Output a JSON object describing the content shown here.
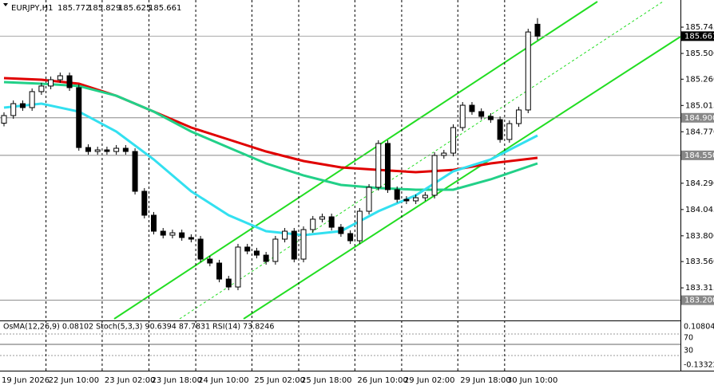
{
  "chart_data": {
    "type": "candlestick",
    "title": "EURJPY,H1",
    "categories": [
      "19 Jun 2026",
      null,
      null,
      null,
      null,
      "22 Jun 10:00",
      null,
      null,
      null,
      null,
      null,
      "23 Jun 02:00",
      null,
      null,
      null,
      null,
      "23 Jun 18:00",
      null,
      null,
      null,
      null,
      "24 Jun 10:00",
      null,
      null,
      null,
      null,
      null,
      "25 Jun 02:00",
      null,
      null,
      null,
      null,
      "25 Jun 18:00",
      null,
      null,
      null,
      null,
      null,
      "26 Jun 10:00",
      null,
      null,
      null,
      null,
      "29 Jun 02:00",
      null,
      null,
      null,
      null,
      null,
      "29 Jun 18:00",
      null,
      null,
      null,
      null,
      "30 Jun 10:00",
      null,
      null,
      null
    ],
    "open": [
      184.85,
      184.921,
      185.032,
      184.995,
      185.144,
      185.196,
      185.255,
      185.292,
      185.181,
      184.623,
      184.586,
      184.601,
      184.586,
      184.616,
      184.586,
      184.215,
      183.992,
      183.843,
      183.806,
      183.828,
      183.784,
      183.769,
      183.583,
      183.546,
      183.397,
      183.323,
      183.695,
      183.658,
      183.62,
      183.561,
      183.769,
      183.843,
      183.583,
      183.858,
      183.955,
      183.977,
      183.88,
      183.821,
      183.754,
      184.029,
      184.252,
      184.661,
      184.23,
      184.14,
      184.126,
      184.155,
      184.178,
      184.549,
      184.571,
      184.809,
      185.017,
      184.958,
      184.913,
      184.883,
      184.698,
      184.846,
      184.973,
      185.772
    ],
    "high": [
      184.951,
      185.062,
      185.062,
      185.174,
      185.226,
      185.285,
      185.322,
      185.322,
      185.211,
      184.653,
      184.631,
      184.631,
      184.646,
      184.646,
      184.616,
      184.245,
      184.022,
      183.873,
      183.858,
      183.858,
      183.814,
      183.799,
      183.613,
      183.576,
      183.427,
      183.725,
      183.725,
      183.688,
      183.65,
      183.799,
      183.873,
      183.873,
      183.888,
      183.985,
      184.007,
      184.007,
      183.91,
      183.851,
      184.059,
      184.282,
      184.691,
      184.691,
      184.26,
      184.17,
      184.185,
      184.208,
      184.579,
      184.601,
      184.839,
      185.047,
      185.047,
      184.988,
      184.943,
      184.913,
      184.876,
      185.003,
      185.73,
      185.829
    ],
    "low": [
      184.82,
      184.891,
      184.965,
      184.965,
      185.114,
      185.166,
      185.225,
      185.151,
      184.593,
      184.556,
      184.556,
      184.556,
      184.556,
      184.556,
      184.185,
      183.962,
      183.813,
      183.776,
      183.776,
      183.754,
      183.739,
      183.553,
      183.516,
      183.367,
      183.293,
      183.293,
      183.628,
      183.59,
      183.531,
      183.531,
      183.739,
      183.553,
      183.553,
      183.828,
      183.925,
      183.85,
      183.791,
      183.724,
      183.724,
      183.999,
      184.222,
      184.2,
      184.11,
      184.096,
      184.096,
      184.125,
      184.148,
      184.519,
      184.541,
      184.779,
      184.928,
      184.883,
      184.853,
      184.668,
      184.668,
      184.816,
      184.943,
      185.625
    ],
    "close": [
      184.921,
      185.032,
      184.995,
      185.144,
      185.196,
      185.255,
      185.292,
      185.181,
      184.623,
      184.586,
      184.601,
      184.586,
      184.616,
      184.586,
      184.215,
      183.992,
      183.843,
      183.806,
      183.828,
      183.784,
      183.769,
      183.583,
      183.546,
      183.397,
      183.323,
      183.695,
      183.658,
      183.62,
      183.561,
      183.769,
      183.843,
      183.583,
      183.858,
      183.955,
      183.977,
      183.88,
      183.821,
      183.754,
      184.029,
      184.252,
      184.661,
      184.23,
      184.14,
      184.126,
      184.155,
      184.178,
      184.549,
      184.571,
      184.809,
      185.017,
      184.958,
      184.913,
      184.883,
      184.698,
      184.846,
      184.973,
      185.7,
      185.661
    ],
    "moving_averages": [
      {
        "color": "#e00000",
        "x": [
          0,
          4,
          8,
          12,
          16,
          20,
          24,
          28,
          32,
          36,
          40,
          44,
          48,
          52,
          57
        ],
        "values": [
          185.27,
          185.255,
          185.218,
          185.106,
          184.958,
          184.809,
          184.698,
          184.586,
          184.497,
          184.438,
          184.415,
          184.393,
          184.415,
          184.475,
          184.527
        ]
      },
      {
        "color": "#22d088",
        "x": [
          0,
          4,
          8,
          12,
          16,
          20,
          24,
          28,
          32,
          36,
          40,
          44,
          48,
          52,
          57
        ],
        "values": [
          185.233,
          185.218,
          185.196,
          185.106,
          184.958,
          184.772,
          184.623,
          184.475,
          184.363,
          184.274,
          184.245,
          184.23,
          184.23,
          184.326,
          184.475
        ]
      },
      {
        "color": "#33e0f0",
        "x": [
          0,
          4,
          8,
          12,
          16,
          20,
          24,
          28,
          32,
          36,
          40,
          44,
          48,
          52,
          57
        ],
        "values": [
          184.995,
          185.032,
          184.958,
          184.772,
          184.512,
          184.215,
          183.992,
          183.843,
          183.806,
          183.843,
          184.029,
          184.178,
          184.401,
          184.512,
          184.735
        ]
      }
    ],
    "ylim": [
      183.026,
      185.998
    ],
    "yticks": [
      185.745,
      {
        "value": 185.5,
        "label": "185.500"
      },
      {
        "value": 185.26,
        "label": "185.260"
      },
      185.015,
      {
        "value": 184.77,
        "label": "184.770"
      },
      {
        "value": 184.29,
        "label": "184.290"
      },
      184.045,
      {
        "value": 183.8,
        "label": "183.800"
      },
      {
        "value": 183.56,
        "label": "183.560"
      },
      183.315
    ],
    "levels": [
      185.661,
      {
        "value": 184.9,
        "label": "184.900"
      },
      {
        "value": 184.55,
        "label": "184.550"
      },
      {
        "value": 183.2,
        "label": "183.200"
      }
    ],
    "indicator_title": "OsMA(12,26,9) 0.08102  Stoch(5,3,3) 90.6394 87.7831  RSI(14) 73.8246",
    "indicator_ticks": [
      "0.10804",
      "70",
      "30",
      "-0.13322"
    ]
  }
}
